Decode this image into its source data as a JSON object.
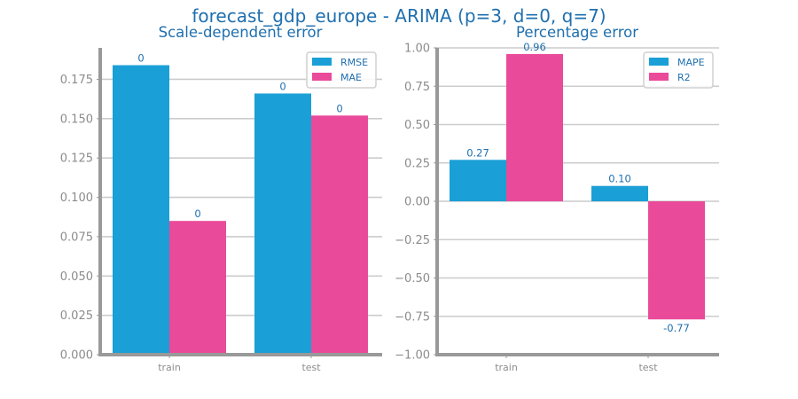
{
  "title": "forecast_gdp_europe - ARIMA (p=3, d=0, q=7)",
  "colors": {
    "series_a": "#1a9fd6",
    "series_b": "#ea4a9a",
    "text": "#1f6fae",
    "tick": "#8c8c8c",
    "grid": "#cccccc",
    "spine": "#999999"
  },
  "chart_data": [
    {
      "type": "bar",
      "title": "Scale-dependent error",
      "categories": [
        "train",
        "test"
      ],
      "ylim": [
        0,
        0.195
      ],
      "yticks": [
        "0.000",
        "0.025",
        "0.050",
        "0.075",
        "0.100",
        "0.125",
        "0.150",
        "0.175"
      ],
      "ytick_values": [
        0,
        0.025,
        0.05,
        0.075,
        0.1,
        0.125,
        0.15,
        0.175
      ],
      "grid": true,
      "legend": "top-right",
      "series": [
        {
          "name": "RMSE",
          "values": [
            0.184,
            0.166
          ],
          "labels": [
            "0",
            "0"
          ]
        },
        {
          "name": "MAE",
          "values": [
            0.085,
            0.152
          ],
          "labels": [
            "0",
            "0"
          ]
        }
      ]
    },
    {
      "type": "bar",
      "title": "Percentage error",
      "categories": [
        "train",
        "test"
      ],
      "ylim": [
        -1.0,
        1.0
      ],
      "yticks": [
        "1.00",
        "0.75",
        "0.50",
        "0.25",
        "0.00",
        "−0.25",
        "−0.50",
        "−0.75",
        "−1.00"
      ],
      "ytick_values": [
        1.0,
        0.75,
        0.5,
        0.25,
        0.0,
        -0.25,
        -0.5,
        -0.75,
        -1.0
      ],
      "grid": true,
      "legend": "top-right",
      "series": [
        {
          "name": "MAPE",
          "values": [
            0.27,
            0.1
          ],
          "labels": [
            "0.27",
            "0.10"
          ]
        },
        {
          "name": "R2",
          "values": [
            0.96,
            -0.77
          ],
          "labels": [
            "0.96",
            "-0.77"
          ]
        }
      ]
    }
  ]
}
